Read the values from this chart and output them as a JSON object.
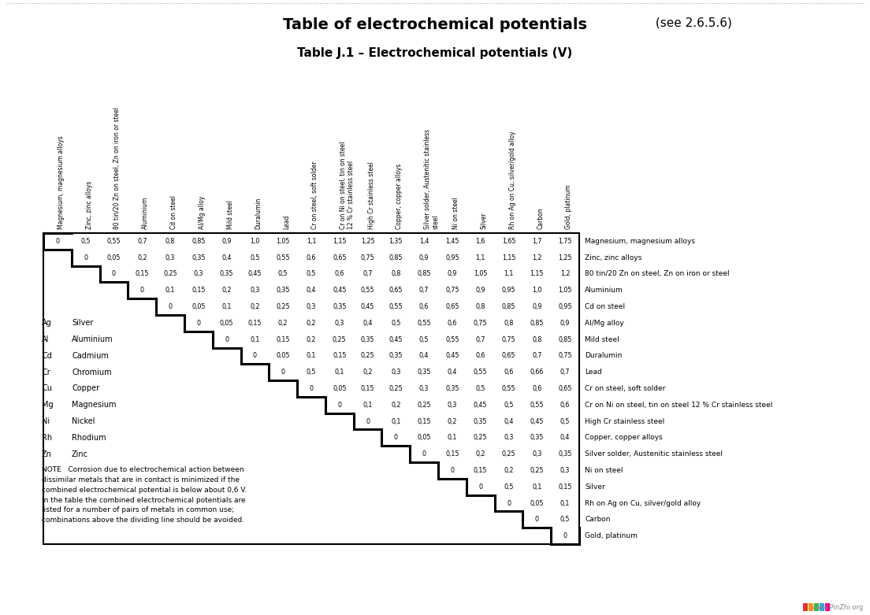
{
  "title_bold": "Table of electrochemical potentials",
  "title_normal": " (see 2.6.5.6)",
  "subtitle": "Table J.1 – Electrochemical potentials (V)",
  "col_headers": [
    "Magnesium, magnesium alloys",
    "Zinc, zinc alloys",
    "80 tin/20 Zn on steel, Zn on iron or steel",
    "Aluminium",
    "Cd on steel",
    "Al/Mg alloy",
    "Mild steel",
    "Duralumin",
    "Lead",
    "Cr on steel, soft solder",
    "Cr on Ni on steel, tin on steel\n12 % Cr stainless steel",
    "High Cr stainless steel",
    "Copper, copper alloys",
    "Silver solder, Austenitic stainless\nsteel",
    "Ni on steel",
    "Silver",
    "Rh on Ag on Cu, silver/gold alloy",
    "Carbon",
    "Gold, platinum"
  ],
  "row_labels": [
    "Magnesium, magnesium alloys",
    "Zinc, zinc alloys",
    "80 tin/20 Zn on steel, Zn on iron or steel",
    "Aluminium",
    "Cd on steel",
    "Al/Mg alloy",
    "Mild steel",
    "Duralumin",
    "Lead",
    "Cr on steel, soft solder",
    "Cr on Ni on steel, tin on steel 12 % Cr stainless steel",
    "High Cr stainless steel",
    "Copper, copper alloys",
    "Silver solder, Austenitic stainless steel",
    "Ni on steel",
    "Silver",
    "Rh on Ag on Cu, silver/gold alloy",
    "Carbon",
    "Gold, platinum"
  ],
  "table_data": [
    [
      "0",
      "0,5",
      "0,55",
      "0,7",
      "0,8",
      "0,85",
      "0,9",
      "1,0",
      "1,05",
      "1,1",
      "1,15",
      "1,25",
      "1,35",
      "1,4",
      "1,45",
      "1,6",
      "1,65",
      "1,7",
      "1,75"
    ],
    [
      "",
      "0",
      "0,05",
      "0,2",
      "0,3",
      "0,35",
      "0,4",
      "0,5",
      "0,55",
      "0,6",
      "0,65",
      "0,75",
      "0,85",
      "0,9",
      "0,95",
      "1,1",
      "1,15",
      "1,2",
      "1,25"
    ],
    [
      "",
      "",
      "0",
      "0,15",
      "0,25",
      "0,3",
      "0,35",
      "0,45",
      "0,5",
      "0,5",
      "0,6",
      "0,7",
      "0,8",
      "0,85",
      "0,9",
      "1,05",
      "1,1",
      "1,15",
      "1,2"
    ],
    [
      "",
      "",
      "",
      "0",
      "0,1",
      "0,15",
      "0,2",
      "0,3",
      "0,35",
      "0,4",
      "0,45",
      "0,55",
      "0,65",
      "0,7",
      "0,75",
      "0,9",
      "0,95",
      "1,0",
      "1,05"
    ],
    [
      "",
      "",
      "",
      "",
      "0",
      "0,05",
      "0,1",
      "0,2",
      "0,25",
      "0,3",
      "0,35",
      "0,45",
      "0,55",
      "0,6",
      "0,65",
      "0,8",
      "0,85",
      "0,9",
      "0,95"
    ],
    [
      "",
      "",
      "",
      "",
      "",
      "0",
      "0,05",
      "0,15",
      "0,2",
      "0,2",
      "0,3",
      "0,4",
      "0,5",
      "0,55",
      "0,6",
      "0,75",
      "0,8",
      "0,85",
      "0,9"
    ],
    [
      "",
      "",
      "",
      "",
      "",
      "",
      "0",
      "0,1",
      "0,15",
      "0,2",
      "0,25",
      "0,35",
      "0,45",
      "0,5",
      "0,55",
      "0,7",
      "0,75",
      "0,8",
      "0,85"
    ],
    [
      "",
      "",
      "",
      "",
      "",
      "",
      "",
      "0",
      "0,05",
      "0,1",
      "0,15",
      "0,25",
      "0,35",
      "0,4",
      "0,45",
      "0,6",
      "0,65",
      "0,7",
      "0,75"
    ],
    [
      "",
      "",
      "",
      "",
      "",
      "",
      "",
      "",
      "0",
      "0,5",
      "0,1",
      "0,2",
      "0,3",
      "0,35",
      "0,4",
      "0,55",
      "0,6",
      "0,66",
      "0,7"
    ],
    [
      "",
      "",
      "",
      "",
      "",
      "",
      "",
      "",
      "",
      "0",
      "0,05",
      "0,15",
      "0,25",
      "0,3",
      "0,35",
      "0,5",
      "0,55",
      "0,6",
      "0,65"
    ],
    [
      "",
      "",
      "",
      "",
      "",
      "",
      "",
      "",
      "",
      "",
      "0",
      "0,1",
      "0,2",
      "0,25",
      "0,3",
      "0,45",
      "0,5",
      "0,55",
      "0,6"
    ],
    [
      "",
      "",
      "",
      "",
      "",
      "",
      "",
      "",
      "",
      "",
      "",
      "0",
      "0,1",
      "0,15",
      "0,2",
      "0,35",
      "0,4",
      "0,45",
      "0,5"
    ],
    [
      "",
      "",
      "",
      "",
      "",
      "",
      "",
      "",
      "",
      "",
      "",
      "",
      "0",
      "0,05",
      "0,1",
      "0,25",
      "0,3",
      "0,35",
      "0,4"
    ],
    [
      "",
      "",
      "",
      "",
      "",
      "",
      "",
      "",
      "",
      "",
      "",
      "",
      "",
      "0",
      "0,15",
      "0,2",
      "0,25",
      "0,3",
      "0,35"
    ],
    [
      "",
      "",
      "",
      "",
      "",
      "",
      "",
      "",
      "",
      "",
      "",
      "",
      "",
      "",
      "0",
      "0,15",
      "0,2",
      "0,25",
      "0,3"
    ],
    [
      "",
      "",
      "",
      "",
      "",
      "",
      "",
      "",
      "",
      "",
      "",
      "",
      "",
      "",
      "",
      "0",
      "0,5",
      "0,1",
      "0,15"
    ],
    [
      "",
      "",
      "",
      "",
      "",
      "",
      "",
      "",
      "",
      "",
      "",
      "",
      "",
      "",
      "",
      "",
      "0",
      "0,05",
      "0,1"
    ],
    [
      "",
      "",
      "",
      "",
      "",
      "",
      "",
      "",
      "",
      "",
      "",
      "",
      "",
      "",
      "",
      "",
      "",
      "0",
      "0,5"
    ],
    [
      "",
      "",
      "",
      "",
      "",
      "",
      "",
      "",
      "",
      "",
      "",
      "",
      "",
      "",
      "",
      "",
      "",
      "",
      "0"
    ]
  ],
  "legend_items": [
    [
      "Ag",
      "Silver"
    ],
    [
      "Al",
      "Aluminium"
    ],
    [
      "Cd",
      "Cadmium"
    ],
    [
      "Cr",
      "Chromium"
    ],
    [
      "Cu",
      "Copper"
    ],
    [
      "Mg",
      "Magnesium"
    ],
    [
      "Ni",
      "Nickel"
    ],
    [
      "Rh",
      "Rhodium"
    ],
    [
      "Zn",
      "Zinc"
    ]
  ],
  "note_text": "NOTE   Corrosion due to electrochemical action between\ndissimilar metals that are in contact is minimized if the\ncombined electrochemical potential is below about 0,6 V.\nIn the table the combined electrochemical potentials are\nlisted for a number of pairs of metals in common use;\ncombinations above the dividing line should be avoided.",
  "background_color": "#ffffff",
  "fig_width": 11.04,
  "fig_height": 7.81,
  "fig_dpi": 100
}
